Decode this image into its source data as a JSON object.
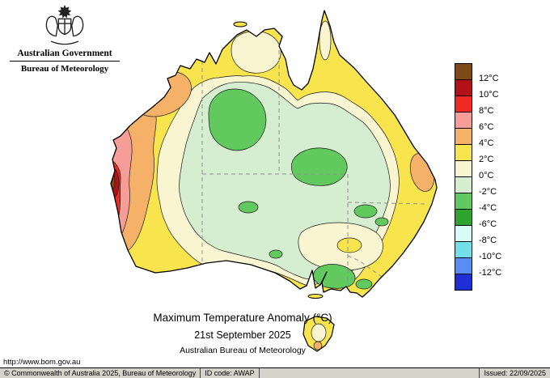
{
  "header": {
    "government": "Australian Government",
    "bureau": "Bureau of Meteorology"
  },
  "titles": {
    "main": "Maximum Temperature Anomaly (°C)",
    "date": "21st September 2025",
    "org": "Australian Bureau of Meteorology"
  },
  "legend": {
    "unit_labels": [
      "12°C",
      "10°C",
      "8°C",
      "6°C",
      "4°C",
      "2°C",
      "0°C",
      "-2°C",
      "-4°C",
      "-6°C",
      "-8°C",
      "-10°C",
      "-12°C"
    ],
    "band_colors": [
      "#7d4a15",
      "#b11117",
      "#ee2a22",
      "#f79d97",
      "#f5b168",
      "#f8e54e",
      "#f9f5d0",
      "#d4eecf",
      "#62c95e",
      "#2fa32f",
      "#d8fbf6",
      "#73dfe8",
      "#5a8df2",
      "#1f2fd6"
    ]
  },
  "map": {
    "ocean": "#ffffff",
    "coast": "#000000",
    "state_border": "#8f8f8f"
  },
  "footer": {
    "url": "http://www.bom.gov.au",
    "copyright": "© Commonwealth of Australia 2025, Bureau of Meteorology",
    "id_code": "ID code: AWAP",
    "issued": "Issued: 22/09/2025"
  }
}
